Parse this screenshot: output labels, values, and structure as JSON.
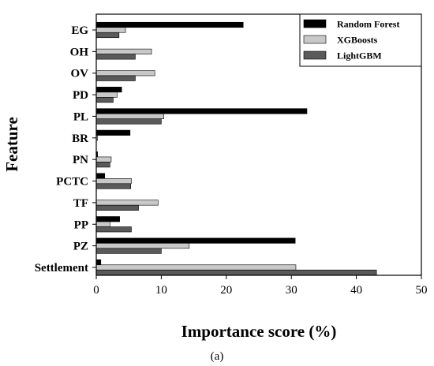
{
  "chart_data": {
    "type": "bar",
    "orientation": "horizontal",
    "categories": [
      "EG",
      "OH",
      "OV",
      "PD",
      "PL",
      "BR",
      "PN",
      "PCTC",
      "TF",
      "PP",
      "PZ",
      "Settlement"
    ],
    "series": [
      {
        "name": "Random Forest",
        "color": "#000000",
        "values": [
          22.6,
          0,
          0,
          3.9,
          32.4,
          5.2,
          0.2,
          1.3,
          0,
          3.6,
          30.6,
          0.7
        ]
      },
      {
        "name": "XGBoosts",
        "color": "#c8c8c8",
        "values": [
          4.5,
          8.5,
          9.0,
          3.2,
          10.4,
          0.2,
          2.3,
          5.4,
          9.5,
          2.1,
          14.3,
          30.7
        ]
      },
      {
        "name": "LightGBM",
        "color": "#5a5a5a",
        "values": [
          3.5,
          6.0,
          6.0,
          2.6,
          10.0,
          0,
          2.1,
          5.3,
          6.5,
          5.4,
          10.0,
          43.1
        ]
      }
    ],
    "xlabel": "Importance score (%)",
    "ylabel": "Feature",
    "xlim": [
      0,
      50
    ],
    "xticks": [
      "0",
      "10",
      "20",
      "30",
      "40",
      "50"
    ],
    "legend_position": "top-right",
    "grid": false
  },
  "caption": "(a)"
}
